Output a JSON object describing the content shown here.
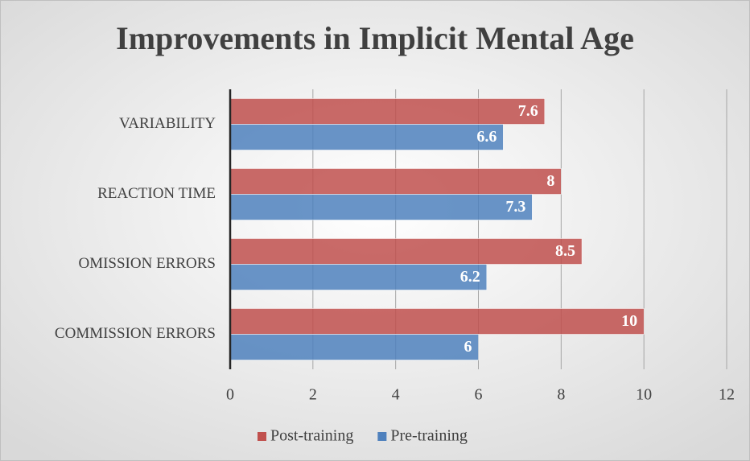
{
  "chart_data": {
    "type": "bar",
    "orientation": "horizontal",
    "title": "Improvements in Implicit Mental Age",
    "categories": [
      "VARIABILITY",
      "REACTION TIME",
      "OMISSION ERRORS",
      "COMMISSION ERRORS"
    ],
    "series": [
      {
        "name": "Post-training",
        "color": "#c0504d",
        "values": [
          7.6,
          8,
          8.5,
          10
        ]
      },
      {
        "name": "Pre-training",
        "color": "#4f81bd",
        "values": [
          6.6,
          7.3,
          6.2,
          6
        ]
      }
    ],
    "xlim": [
      0,
      12
    ],
    "xticks": [
      0,
      2,
      4,
      6,
      8,
      10,
      12
    ],
    "grid": true,
    "legend": "bottom"
  }
}
